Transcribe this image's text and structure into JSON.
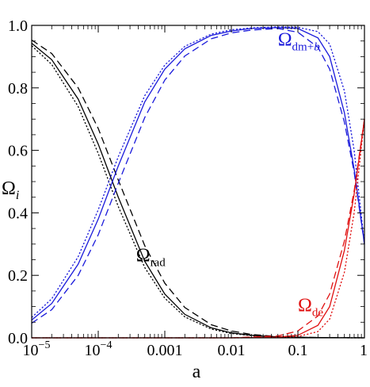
{
  "chart_data": {
    "type": "line",
    "xscale": "log",
    "xlim": [
      1e-05,
      1
    ],
    "ylim": [
      0,
      1
    ],
    "grid": false,
    "xlabel": "a",
    "ylabel_main": "Ω",
    "ylabel_sub": "i",
    "xticks": [
      {
        "value": 1e-05,
        "base": "10",
        "exp": "−5"
      },
      {
        "value": 0.0001,
        "base": "10",
        "exp": "−4"
      },
      {
        "value": 0.001,
        "label": "0.001"
      },
      {
        "value": 0.01,
        "label": "0.01"
      },
      {
        "value": 0.1,
        "label": "0.1"
      },
      {
        "value": 1,
        "label": "1"
      }
    ],
    "yticks": [
      {
        "value": 0.0,
        "label": "0.0"
      },
      {
        "value": 0.2,
        "label": "0.2"
      },
      {
        "value": 0.4,
        "label": "0.4"
      },
      {
        "value": 0.6,
        "label": "0.6"
      },
      {
        "value": 0.8,
        "label": "0.8"
      },
      {
        "value": 1.0,
        "label": "1.0"
      }
    ],
    "annotations": [
      {
        "main": "Ω",
        "sub": "dm+",
        "sub_italic": "b",
        "color": "#1a1adb",
        "at": [
          0.05,
          0.935
        ]
      },
      {
        "main": "Ω",
        "sub": "rad",
        "sub_italic": "",
        "color": "#000000",
        "at": [
          0.00037,
          0.245
        ]
      },
      {
        "main": "Ω",
        "sub": "de",
        "sub_italic": "",
        "color": "#e01010",
        "at": [
          0.1,
          0.085
        ]
      }
    ],
    "colors": {
      "rad": "#000000",
      "dm": "#1a1adb",
      "de": "#e01010"
    },
    "series": [
      {
        "component": "rad",
        "style": "solid",
        "points": [
          [
            1e-05,
            0.943
          ],
          [
            2e-05,
            0.89
          ],
          [
            5e-05,
            0.764
          ],
          [
            0.0001,
            0.62
          ],
          [
            0.0002,
            0.45
          ],
          [
            0.0005,
            0.245
          ],
          [
            0.001,
            0.14
          ],
          [
            0.002,
            0.075
          ],
          [
            0.005,
            0.032
          ],
          [
            0.01,
            0.016
          ],
          [
            0.02,
            0.008
          ],
          [
            0.05,
            0.003
          ],
          [
            0.1,
            0.0015
          ],
          [
            0.2,
            0.0008
          ],
          [
            0.5,
            0.0003
          ],
          [
            1,
            0.0001
          ]
        ]
      },
      {
        "component": "rad",
        "style": "dotted",
        "points": [
          [
            1e-05,
            0.935
          ],
          [
            2e-05,
            0.875
          ],
          [
            5e-05,
            0.74
          ],
          [
            0.0001,
            0.59
          ],
          [
            0.0002,
            0.42
          ],
          [
            0.0005,
            0.225
          ],
          [
            0.001,
            0.127
          ],
          [
            0.002,
            0.067
          ],
          [
            0.005,
            0.028
          ],
          [
            0.01,
            0.014
          ],
          [
            0.02,
            0.007
          ],
          [
            0.05,
            0.0028
          ],
          [
            0.1,
            0.0014
          ],
          [
            0.2,
            0.0007
          ],
          [
            0.5,
            0.0003
          ],
          [
            1,
            0.0001
          ]
        ]
      },
      {
        "component": "rad",
        "style": "dashed",
        "points": [
          [
            1e-05,
            0.953
          ],
          [
            2e-05,
            0.91
          ],
          [
            5e-05,
            0.8
          ],
          [
            0.0001,
            0.67
          ],
          [
            0.0002,
            0.505
          ],
          [
            0.0005,
            0.295
          ],
          [
            0.001,
            0.175
          ],
          [
            0.002,
            0.097
          ],
          [
            0.005,
            0.042
          ],
          [
            0.01,
            0.022
          ],
          [
            0.02,
            0.011
          ],
          [
            0.05,
            0.004
          ],
          [
            0.1,
            0.002
          ],
          [
            0.2,
            0.001
          ],
          [
            0.5,
            0.0004
          ],
          [
            1,
            0.0002
          ]
        ]
      },
      {
        "component": "dm",
        "style": "solid",
        "points": [
          [
            1e-05,
            0.057
          ],
          [
            2e-05,
            0.11
          ],
          [
            5e-05,
            0.236
          ],
          [
            0.0001,
            0.38
          ],
          [
            0.0002,
            0.55
          ],
          [
            0.0005,
            0.755
          ],
          [
            0.001,
            0.86
          ],
          [
            0.002,
            0.925
          ],
          [
            0.005,
            0.968
          ],
          [
            0.01,
            0.982
          ],
          [
            0.02,
            0.99
          ],
          [
            0.05,
            0.993
          ],
          [
            0.1,
            0.99
          ],
          [
            0.2,
            0.96
          ],
          [
            0.3,
            0.9
          ],
          [
            0.5,
            0.72
          ],
          [
            0.7,
            0.54
          ],
          [
            1,
            0.3
          ]
        ]
      },
      {
        "component": "dm",
        "style": "dotted",
        "points": [
          [
            1e-05,
            0.065
          ],
          [
            2e-05,
            0.125
          ],
          [
            5e-05,
            0.26
          ],
          [
            0.0001,
            0.41
          ],
          [
            0.0002,
            0.58
          ],
          [
            0.0005,
            0.775
          ],
          [
            0.001,
            0.873
          ],
          [
            0.002,
            0.933
          ],
          [
            0.005,
            0.972
          ],
          [
            0.01,
            0.986
          ],
          [
            0.02,
            0.992
          ],
          [
            0.05,
            0.995
          ],
          [
            0.1,
            0.994
          ],
          [
            0.2,
            0.98
          ],
          [
            0.3,
            0.94
          ],
          [
            0.5,
            0.79
          ],
          [
            0.7,
            0.6
          ],
          [
            1,
            0.3
          ]
        ]
      },
      {
        "component": "dm",
        "style": "dashed",
        "points": [
          [
            1e-05,
            0.047
          ],
          [
            2e-05,
            0.09
          ],
          [
            5e-05,
            0.2
          ],
          [
            0.0001,
            0.33
          ],
          [
            0.0002,
            0.495
          ],
          [
            0.0005,
            0.705
          ],
          [
            0.001,
            0.825
          ],
          [
            0.002,
            0.902
          ],
          [
            0.005,
            0.957
          ],
          [
            0.01,
            0.976
          ],
          [
            0.02,
            0.985
          ],
          [
            0.05,
            0.99
          ],
          [
            0.1,
            0.978
          ],
          [
            0.2,
            0.93
          ],
          [
            0.3,
            0.86
          ],
          [
            0.5,
            0.69
          ],
          [
            0.7,
            0.53
          ],
          [
            1,
            0.3
          ]
        ]
      },
      {
        "component": "de",
        "style": "solid",
        "points": [
          [
            1e-05,
            0
          ],
          [
            0.01,
            0
          ],
          [
            0.05,
            0.002
          ],
          [
            0.1,
            0.008
          ],
          [
            0.2,
            0.04
          ],
          [
            0.3,
            0.1
          ],
          [
            0.5,
            0.28
          ],
          [
            0.7,
            0.46
          ],
          [
            1,
            0.7
          ]
        ]
      },
      {
        "component": "de",
        "style": "dotted",
        "points": [
          [
            1e-05,
            0
          ],
          [
            0.01,
            0
          ],
          [
            0.05,
            0.001
          ],
          [
            0.1,
            0.004
          ],
          [
            0.2,
            0.02
          ],
          [
            0.3,
            0.06
          ],
          [
            0.5,
            0.21
          ],
          [
            0.7,
            0.4
          ],
          [
            1,
            0.7
          ]
        ]
      },
      {
        "component": "de",
        "style": "dashed",
        "points": [
          [
            1e-05,
            0
          ],
          [
            0.01,
            0
          ],
          [
            0.05,
            0.006
          ],
          [
            0.1,
            0.022
          ],
          [
            0.2,
            0.07
          ],
          [
            0.3,
            0.14
          ],
          [
            0.5,
            0.31
          ],
          [
            0.7,
            0.47
          ],
          [
            1,
            0.7
          ]
        ]
      }
    ]
  }
}
